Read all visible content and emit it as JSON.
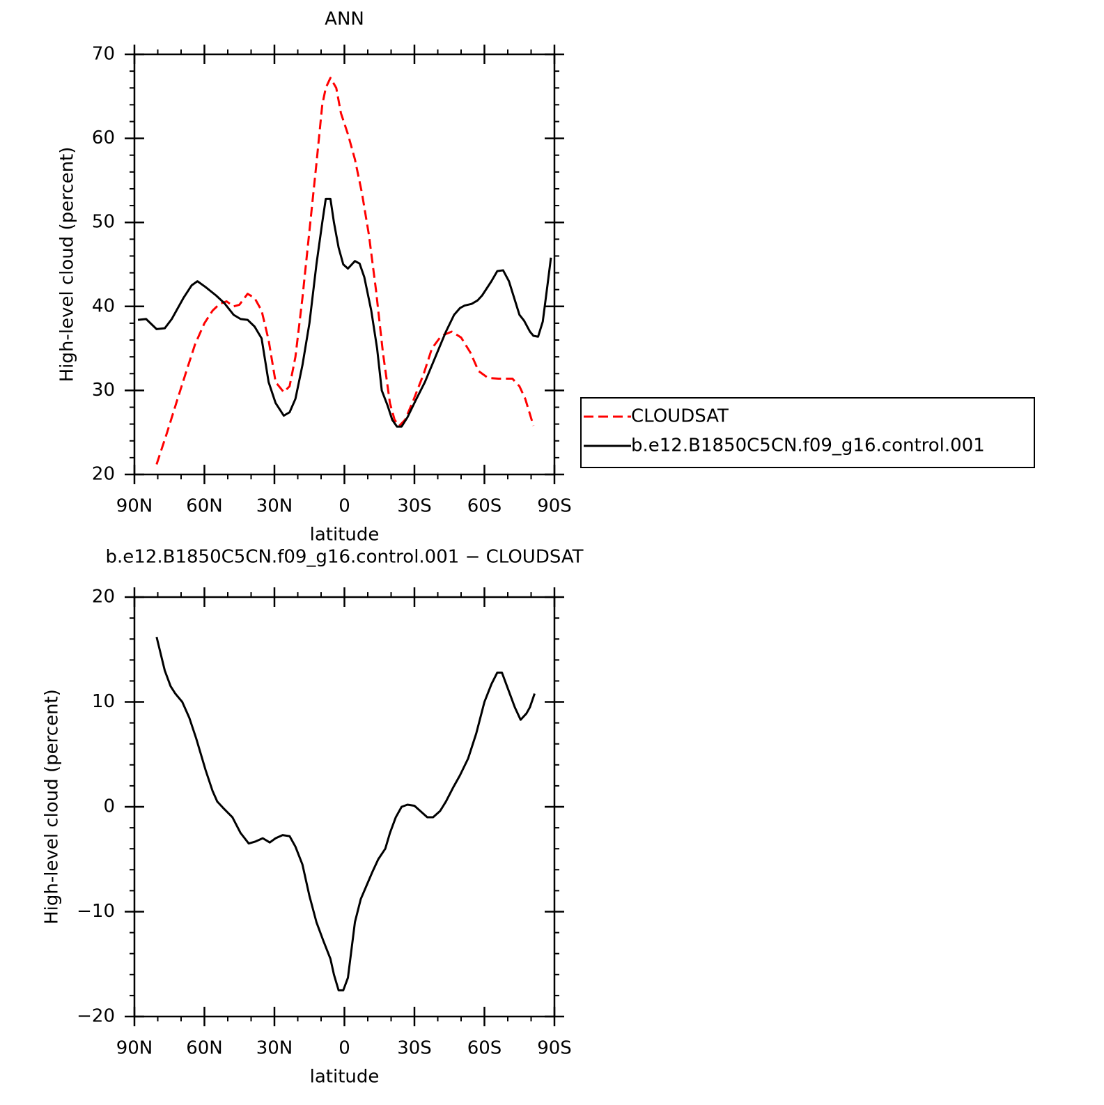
{
  "chart_data": [
    {
      "type": "line",
      "title": "ANN",
      "xlabel": "latitude",
      "ylabel": "High-level cloud (percent)",
      "xlim": [
        90,
        -90
      ],
      "xticks": [
        {
          "value": 90,
          "label": "90N"
        },
        {
          "value": 60,
          "label": "60N"
        },
        {
          "value": 30,
          "label": "30N"
        },
        0,
        {
          "value": -30,
          "label": "30S"
        },
        {
          "value": -60,
          "label": "60S"
        },
        {
          "value": -90,
          "label": "90S"
        }
      ],
      "xminorticks": [
        80,
        70,
        50,
        40,
        20,
        10,
        -10,
        -20,
        -40,
        -50,
        -70,
        -80
      ],
      "ylim": [
        20,
        70
      ],
      "yticks": [
        20,
        30,
        40,
        50,
        60,
        70
      ],
      "yminorticks": [
        22,
        24,
        26,
        28,
        32,
        34,
        36,
        38,
        42,
        44,
        46,
        48,
        52,
        54,
        56,
        58,
        62,
        64,
        66,
        68
      ],
      "legend": "right",
      "series": [
        {
          "name": "CLOUDSAT",
          "color": "#ff0000",
          "linestyle": "dashed",
          "x": [
            80.5,
            76,
            71.5,
            67.5,
            64,
            60,
            56.5,
            53.5,
            50.5,
            47.5,
            45,
            41.5,
            38.5,
            35.5,
            32.5,
            29.5,
            26,
            23.5,
            21,
            18,
            15,
            12,
            9.5,
            8,
            6,
            3.5,
            1.5,
            -1.5,
            -4.5,
            -7.5,
            -10.5,
            -13.5,
            -16.5,
            -19.5,
            -21.5,
            -23.5,
            -26,
            -29.5,
            -34,
            -37.5,
            -41.5,
            -46,
            -50,
            -54,
            -57.5,
            -61.5,
            -66,
            -72,
            -75,
            -77.5,
            -81
          ],
          "values": [
            21.2,
            25,
            29,
            32.5,
            35.5,
            38,
            39.5,
            40.3,
            40.6,
            40,
            40.2,
            41.5,
            41,
            39.5,
            36,
            31,
            29.8,
            30.5,
            34,
            41,
            49,
            57,
            64,
            66,
            67.2,
            66,
            63,
            60.5,
            57.5,
            53.5,
            48.5,
            42,
            34.5,
            28.5,
            26.5,
            25.8,
            26.5,
            28.8,
            32,
            35,
            36.5,
            37,
            36.3,
            34.5,
            32.3,
            31.5,
            31.4,
            31.4,
            30.5,
            29,
            25.8
          ]
        },
        {
          "name": "b.e12.B1850C5CN.f09_g16.control.001",
          "color": "#000000",
          "linestyle": "solid",
          "x": [
            88.5,
            85,
            80.5,
            77,
            74,
            69,
            65.5,
            63,
            59.5,
            55,
            51.5,
            47.5,
            44.5,
            41.5,
            38.5,
            35.5,
            32.5,
            29.5,
            26,
            23.5,
            21,
            18,
            15,
            12,
            9.5,
            8,
            6,
            4.5,
            2.5,
            0.5,
            -1.5,
            -4.5,
            -6.5,
            -8.5,
            -11.5,
            -14,
            -16,
            -18.5,
            -20.5,
            -22.5,
            -24.5,
            -27,
            -30.5,
            -34.5,
            -39,
            -43.5,
            -47,
            -49.5,
            -51.5,
            -54.5,
            -57,
            -59,
            -63,
            -65.5,
            -68,
            -70.5,
            -75,
            -77,
            -79.5,
            -81,
            -83,
            -85,
            -87,
            -88.5
          ],
          "values": [
            38.4,
            38.5,
            37.3,
            37.4,
            38.5,
            41,
            42.5,
            43,
            42.3,
            41.3,
            40.4,
            39,
            38.5,
            38.4,
            37.6,
            36.2,
            31,
            28.5,
            27,
            27.4,
            29,
            33,
            38,
            45,
            50,
            52.8,
            52.8,
            50,
            47,
            45,
            44.5,
            45.4,
            45.1,
            43.5,
            39.5,
            35,
            30,
            28.2,
            26.5,
            25.7,
            25.7,
            26.8,
            28.8,
            31,
            34,
            37,
            39,
            39.8,
            40.1,
            40.3,
            40.7,
            41.3,
            43,
            44.2,
            44.3,
            43,
            39,
            38.3,
            37,
            36.5,
            36.4,
            38.2,
            42.5,
            45.8
          ]
        }
      ]
    },
    {
      "type": "line",
      "title": "b.e12.B1850C5CN.f09_g16.control.001 − CLOUDSAT",
      "xlabel": "latitude",
      "ylabel": "High-level cloud (percent)",
      "xlim": [
        90,
        -90
      ],
      "xticks": [
        {
          "value": 90,
          "label": "90N"
        },
        {
          "value": 60,
          "label": "60N"
        },
        {
          "value": 30,
          "label": "30N"
        },
        0,
        {
          "value": -30,
          "label": "30S"
        },
        {
          "value": -60,
          "label": "60S"
        },
        {
          "value": -90,
          "label": "90S"
        }
      ],
      "xminorticks": [
        80,
        70,
        50,
        40,
        20,
        10,
        -10,
        -20,
        -40,
        -50,
        -70,
        -80
      ],
      "ylim": [
        -20,
        20
      ],
      "yticks": [
        {
          "value": -20,
          "label": "−20"
        },
        {
          "value": -10,
          "label": "−10"
        },
        0,
        10,
        20
      ],
      "yminorticks": [
        -18,
        -16,
        -14,
        -12,
        -8,
        -6,
        -4,
        -2,
        2,
        4,
        6,
        8,
        12,
        14,
        16,
        18
      ],
      "series": [
        {
          "color": "#000000",
          "linestyle": "solid",
          "x": [
            80.5,
            77,
            74.5,
            72.5,
            69.5,
            66.5,
            63.5,
            59.5,
            56.5,
            54.5,
            52,
            48,
            44.5,
            41,
            38,
            35,
            32,
            29.5,
            26.5,
            23.5,
            21,
            18,
            15,
            12,
            9,
            6,
            4.5,
            2.5,
            0.5,
            -1.5,
            -4.5,
            -7,
            -9.5,
            -12,
            -14.5,
            -17.5,
            -19.5,
            -22,
            -24.5,
            -27,
            -30,
            -32.5,
            -35.5,
            -38,
            -41,
            -43.5,
            -46.5,
            -49.5,
            -53,
            -56.5,
            -60,
            -63,
            -65.5,
            -67.5,
            -70.5,
            -73,
            -75.5,
            -78,
            -79.5,
            -81.5
          ],
          "values": [
            16.2,
            13,
            11.5,
            10.8,
            10,
            8.5,
            6.5,
            3.5,
            1.5,
            0.5,
            -0.1,
            -1,
            -2.5,
            -3.5,
            -3.3,
            -3,
            -3.4,
            -3,
            -2.7,
            -2.8,
            -3.8,
            -5.5,
            -8.5,
            -11,
            -12.8,
            -14.5,
            -16,
            -17.5,
            -17.5,
            -16.3,
            -11,
            -8.8,
            -7.5,
            -6.2,
            -5,
            -4,
            -2.5,
            -1,
            0,
            0.2,
            0.1,
            -0.4,
            -1,
            -1,
            -0.4,
            0.5,
            1.8,
            3,
            4.6,
            7,
            10,
            11.7,
            12.8,
            12.8,
            11,
            9.5,
            8.3,
            8.9,
            9.5,
            10.8
          ]
        }
      ]
    }
  ]
}
